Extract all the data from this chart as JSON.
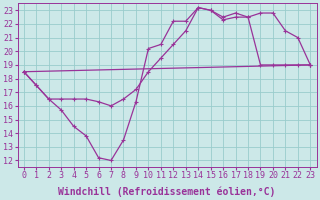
{
  "background_color": "#cce8e8",
  "grid_color": "#99cccc",
  "line_color": "#993399",
  "xlabel": "Windchill (Refroidissement éolien,°C)",
  "xlabel_fontsize": 7.0,
  "tick_fontsize": 6.0,
  "xlim": [
    -0.5,
    23.5
  ],
  "ylim": [
    11.5,
    23.5
  ],
  "yticks": [
    12,
    13,
    14,
    15,
    16,
    17,
    18,
    19,
    20,
    21,
    22,
    23
  ],
  "xticks": [
    0,
    1,
    2,
    3,
    4,
    5,
    6,
    7,
    8,
    9,
    10,
    11,
    12,
    13,
    14,
    15,
    16,
    17,
    18,
    19,
    20,
    21,
    22,
    23
  ],
  "line1_x": [
    0,
    1,
    2,
    3,
    4,
    5,
    6,
    7,
    8,
    9,
    10,
    11,
    12,
    13,
    14,
    15,
    16,
    17,
    18,
    19,
    20,
    21,
    22,
    23
  ],
  "line1_y": [
    18.5,
    17.5,
    16.5,
    15.7,
    14.5,
    13.8,
    12.2,
    12.0,
    13.5,
    16.3,
    20.2,
    20.5,
    22.2,
    22.2,
    23.2,
    23.0,
    22.3,
    22.5,
    22.5,
    22.8,
    22.8,
    21.5,
    21.0,
    19.0
  ],
  "line2_x": [
    0,
    23
  ],
  "line2_y": [
    18.5,
    19.0
  ],
  "line3_x": [
    0,
    1,
    2,
    3,
    4,
    5,
    6,
    7,
    8,
    9,
    10,
    11,
    12,
    13,
    14,
    15,
    16,
    17,
    18,
    19,
    20,
    21,
    22,
    23
  ],
  "line3_y": [
    18.5,
    17.5,
    16.5,
    16.5,
    16.5,
    16.5,
    16.3,
    16.0,
    16.5,
    17.2,
    18.5,
    19.5,
    20.5,
    21.5,
    23.2,
    23.0,
    22.5,
    22.8,
    22.5,
    19.0,
    19.0,
    19.0,
    19.0,
    19.0
  ]
}
